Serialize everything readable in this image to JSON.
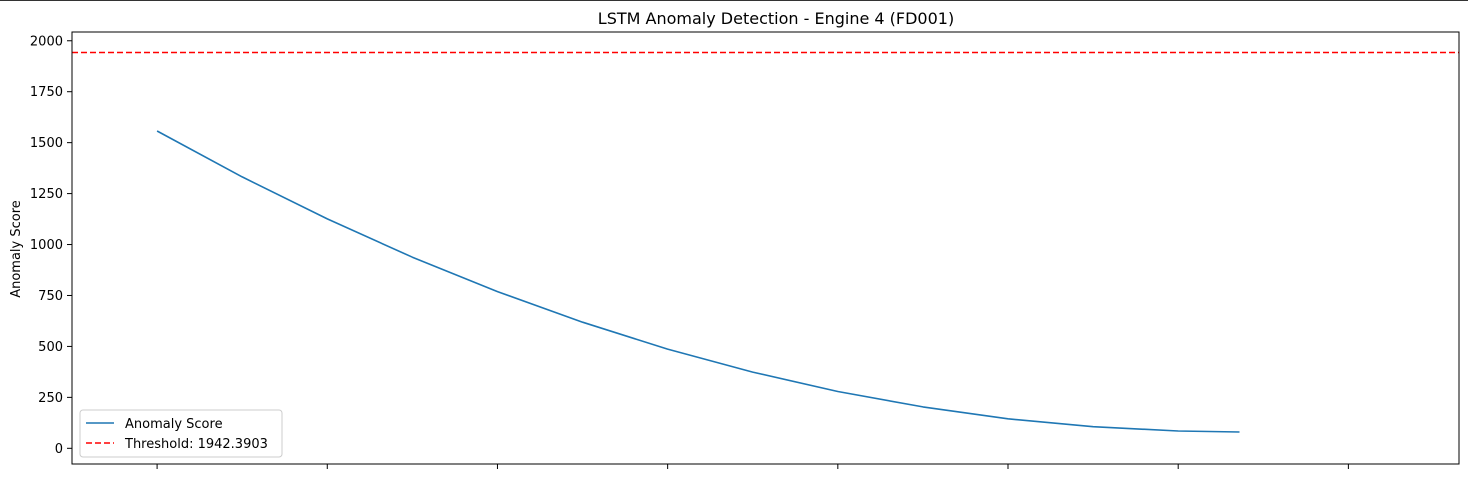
{
  "chart_data": {
    "type": "line",
    "title": "LSTM Anomaly Detection - Engine 4 (FD001)",
    "xlabel": "",
    "ylabel": "Anomaly Score",
    "xlim": [
      -0.5,
      7.65
    ],
    "ylim": [
      -77,
      2043
    ],
    "x_tick_count": 8,
    "y_ticks": [
      0,
      250,
      500,
      750,
      1000,
      1250,
      1500,
      1750,
      2000
    ],
    "series": [
      {
        "name": "Anomaly Score",
        "color": "#1f77b4",
        "style": "solid",
        "x": [
          0,
          0.5,
          1,
          1.5,
          2,
          2.5,
          3,
          3.5,
          4,
          4.5,
          5,
          5.5,
          6,
          6.36
        ],
        "values": [
          1557,
          1332,
          1126,
          938,
          769,
          619,
          487,
          374,
          279,
          203,
          145,
          106,
          85,
          80
        ]
      }
    ],
    "threshold": {
      "name": "Threshold: 1942.3903",
      "value": 1942.3903,
      "color": "#ff0000",
      "style": "dashed"
    },
    "legend": {
      "position": "lower-left",
      "entries": [
        "Anomaly Score",
        "Threshold: 1942.3903"
      ]
    },
    "grid": false
  }
}
